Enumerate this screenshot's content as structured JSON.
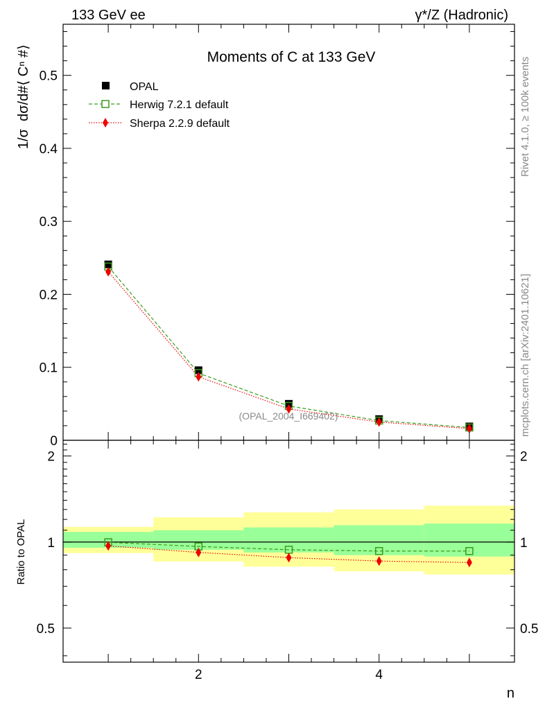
{
  "header": {
    "left": "133 GeV ee",
    "right": "γ*/Z (Hadronic)"
  },
  "side": {
    "rivet": "Rivet 4.1.0, ≥ 100k events",
    "mcplots": "mcplots.cern.ch [arXiv:2401.10621]"
  },
  "colors": {
    "data": "#000000",
    "herwig": "#3a9a1a",
    "sherpa": "#ee0000",
    "band_inner": "#99ff99",
    "band_outer": "#ffff99"
  },
  "chart_data": [
    {
      "type": "scatter",
      "title": "Moments of C at 133 GeV",
      "xlabel": "n",
      "ylabel": "1/σ  dσ/d#⟨ Cⁿ #⟩",
      "analysis_label": "(OPAL_2004_I669402)",
      "xlim": [
        0.5,
        5.5
      ],
      "ylim": [
        0,
        0.57
      ],
      "yticks": [
        0,
        0.1,
        0.2,
        0.3,
        0.4,
        0.5
      ],
      "ytick_labels": [
        "0",
        "0.1",
        "0.2",
        "0.3",
        "0.4",
        "0.5"
      ],
      "x": [
        1,
        2,
        3,
        4,
        5
      ],
      "series": [
        {
          "name": "OPAL",
          "style": "marker",
          "values": [
            0.241,
            0.096,
            0.05,
            0.029,
            0.019
          ]
        },
        {
          "name": "Herwig 7.2.1 default",
          "style": "dashed",
          "values": [
            0.238,
            0.092,
            0.047,
            0.027,
            0.0175
          ]
        },
        {
          "name": "Sherpa 2.2.9 default",
          "style": "dotted",
          "values": [
            0.231,
            0.087,
            0.043,
            0.025,
            0.016
          ]
        }
      ]
    },
    {
      "type": "line",
      "title": "",
      "xlabel": "n",
      "ylabel": "Ratio to OPAL",
      "xlim": [
        0.5,
        5.5
      ],
      "xticks": [
        2,
        4
      ],
      "xtick_labels": [
        "2",
        "4"
      ],
      "ylim": [
        0.38,
        2.27
      ],
      "yscale": "log",
      "yticks": [
        0.5,
        1,
        2
      ],
      "ytick_labels": [
        "0.5",
        "1",
        "2"
      ],
      "bins": [
        {
          "lo": 0.5,
          "hi": 1.5,
          "inner": [
            0.955,
            1.085
          ],
          "outer": [
            0.915,
            1.13
          ]
        },
        {
          "lo": 1.5,
          "hi": 2.5,
          "inner": [
            0.94,
            1.1
          ],
          "outer": [
            0.855,
            1.22
          ]
        },
        {
          "lo": 2.5,
          "hi": 3.5,
          "inner": [
            0.92,
            1.125
          ],
          "outer": [
            0.82,
            1.27
          ]
        },
        {
          "lo": 3.5,
          "hi": 4.5,
          "inner": [
            0.9,
            1.145
          ],
          "outer": [
            0.79,
            1.3
          ]
        },
        {
          "lo": 4.5,
          "hi": 5.5,
          "inner": [
            0.89,
            1.16
          ],
          "outer": [
            0.77,
            1.34
          ]
        }
      ],
      "x": [
        1,
        2,
        3,
        4,
        5
      ],
      "series": [
        {
          "name": "Herwig 7.2.1 default",
          "values": [
            0.998,
            0.965,
            0.94,
            0.93,
            0.93
          ]
        },
        {
          "name": "Sherpa 2.2.9 default",
          "values": [
            0.97,
            0.92,
            0.882,
            0.858,
            0.848
          ]
        }
      ]
    }
  ]
}
